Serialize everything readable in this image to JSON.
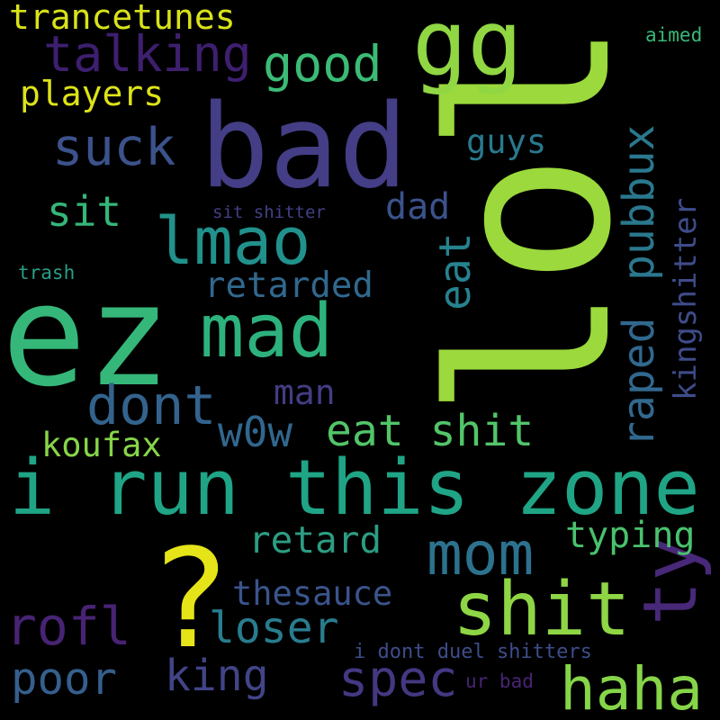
{
  "words": [
    {
      "text": "lol",
      "color": "#9bd93c",
      "orientation": "vertical"
    },
    {
      "text": "ez",
      "color": "#35b779",
      "orientation": "horizontal"
    },
    {
      "text": "bad",
      "color": "#433e85",
      "orientation": "horizontal"
    },
    {
      "text": "i run this zone",
      "color": "#20a486",
      "orientation": "horizontal"
    },
    {
      "text": "?",
      "color": "#e5e419",
      "orientation": "horizontal"
    },
    {
      "text": "gg",
      "color": "#90d743",
      "orientation": "horizontal"
    },
    {
      "text": "mad",
      "color": "#2db27d",
      "orientation": "horizontal"
    },
    {
      "text": "shit",
      "color": "#8ed645",
      "orientation": "horizontal"
    },
    {
      "text": "haha",
      "color": "#86d549",
      "orientation": "horizontal"
    },
    {
      "text": "ty",
      "color": "#482878",
      "orientation": "vertical"
    },
    {
      "text": "lmao",
      "color": "#21918c",
      "orientation": "horizontal"
    },
    {
      "text": "mom",
      "color": "#2c728e",
      "orientation": "horizontal"
    },
    {
      "text": "rofl",
      "color": "#482374",
      "orientation": "horizontal"
    },
    {
      "text": "talking",
      "color": "#3e1f6f",
      "orientation": "horizontal"
    },
    {
      "text": "good",
      "color": "#3bbb75",
      "orientation": "horizontal"
    },
    {
      "text": "suck",
      "color": "#3b528b",
      "orientation": "horizontal"
    },
    {
      "text": "dont",
      "color": "#33638d",
      "orientation": "horizontal"
    },
    {
      "text": "eat shit",
      "color": "#52c569",
      "orientation": "horizontal"
    },
    {
      "text": "raped",
      "color": "#31688e",
      "orientation": "vertical"
    },
    {
      "text": "pubbux",
      "color": "#2a788e",
      "orientation": "vertical"
    },
    {
      "text": "eat",
      "color": "#26828e",
      "orientation": "vertical"
    },
    {
      "text": "king",
      "color": "#414487",
      "orientation": "horizontal"
    },
    {
      "text": "spec",
      "color": "#453781",
      "orientation": "horizontal"
    },
    {
      "text": "poor",
      "color": "#355f8d",
      "orientation": "horizontal"
    },
    {
      "text": "loser",
      "color": "#287d8e",
      "orientation": "horizontal"
    },
    {
      "text": "trancetunes",
      "color": "#d8e219",
      "orientation": "horizontal"
    },
    {
      "text": "players",
      "color": "#dde318",
      "orientation": "horizontal"
    },
    {
      "text": "kingshitter",
      "color": "#3e4c8a",
      "orientation": "vertical"
    },
    {
      "text": "retarded",
      "color": "#31688e",
      "orientation": "horizontal"
    },
    {
      "text": "retard",
      "color": "#2c9d83",
      "orientation": "horizontal"
    },
    {
      "text": "w0w",
      "color": "#31678e",
      "orientation": "horizontal"
    },
    {
      "text": "typing",
      "color": "#4ac16d",
      "orientation": "horizontal"
    },
    {
      "text": "koufax",
      "color": "#86d549",
      "orientation": "horizontal"
    },
    {
      "text": "thesauce",
      "color": "#3a548c",
      "orientation": "horizontal"
    },
    {
      "text": "sit",
      "color": "#35b779",
      "orientation": "horizontal"
    },
    {
      "text": "dad",
      "color": "#3b528b",
      "orientation": "horizontal"
    },
    {
      "text": "man",
      "color": "#433d84",
      "orientation": "horizontal"
    },
    {
      "text": "guys",
      "color": "#29798e",
      "orientation": "horizontal"
    },
    {
      "text": "i dont duel shitters",
      "color": "#3d4d8a",
      "orientation": "horizontal"
    },
    {
      "text": "sit shitter",
      "color": "#424086",
      "orientation": "horizontal"
    },
    {
      "text": "trash",
      "color": "#2a9e89",
      "orientation": "horizontal"
    },
    {
      "text": "aimed",
      "color": "#39b877",
      "orientation": "horizontal"
    },
    {
      "text": "ur bad",
      "color": "#482475",
      "orientation": "horizontal"
    }
  ]
}
